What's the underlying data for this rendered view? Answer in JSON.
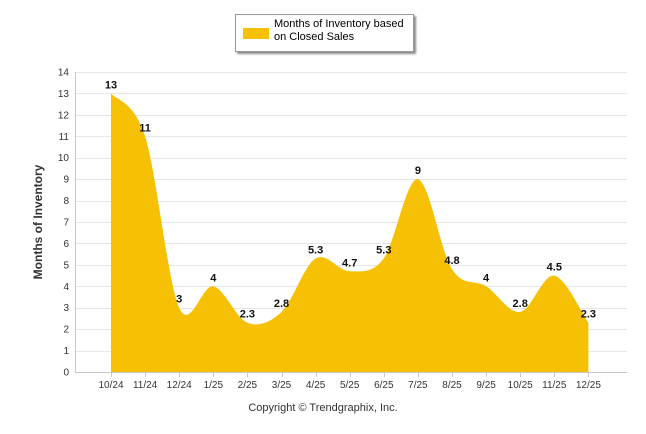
{
  "chart_data": {
    "type": "area",
    "title": "",
    "legend": {
      "label": "Months of Inventory based on Closed Sales",
      "position": "top-center"
    },
    "xlabel": "",
    "ylabel": "Months of Inventory",
    "ylim": [
      0,
      14
    ],
    "yticks": [
      0,
      1,
      2,
      3,
      4,
      5,
      6,
      7,
      8,
      9,
      10,
      11,
      12,
      13,
      14
    ],
    "grid": true,
    "color": "#F6C104",
    "categories": [
      "10/24",
      "11/24",
      "12/24",
      "1/25",
      "2/25",
      "3/25",
      "4/25",
      "5/25",
      "6/25",
      "7/25",
      "8/25",
      "9/25",
      "10/25",
      "11/25",
      "12/25"
    ],
    "values": [
      13,
      11,
      3,
      4,
      2.3,
      2.8,
      5.3,
      4.7,
      5.3,
      9,
      4.8,
      4,
      2.8,
      4.5,
      2.3
    ],
    "data_labels": [
      "13",
      "11",
      "3",
      "4",
      "2.3",
      "2.8",
      "5.3",
      "4.7",
      "5.3",
      "9",
      "4.8",
      "4",
      "2.8",
      "4.5",
      "2.3"
    ]
  },
  "footer": {
    "copyright": "Copyright © Trendgraphix, Inc."
  }
}
